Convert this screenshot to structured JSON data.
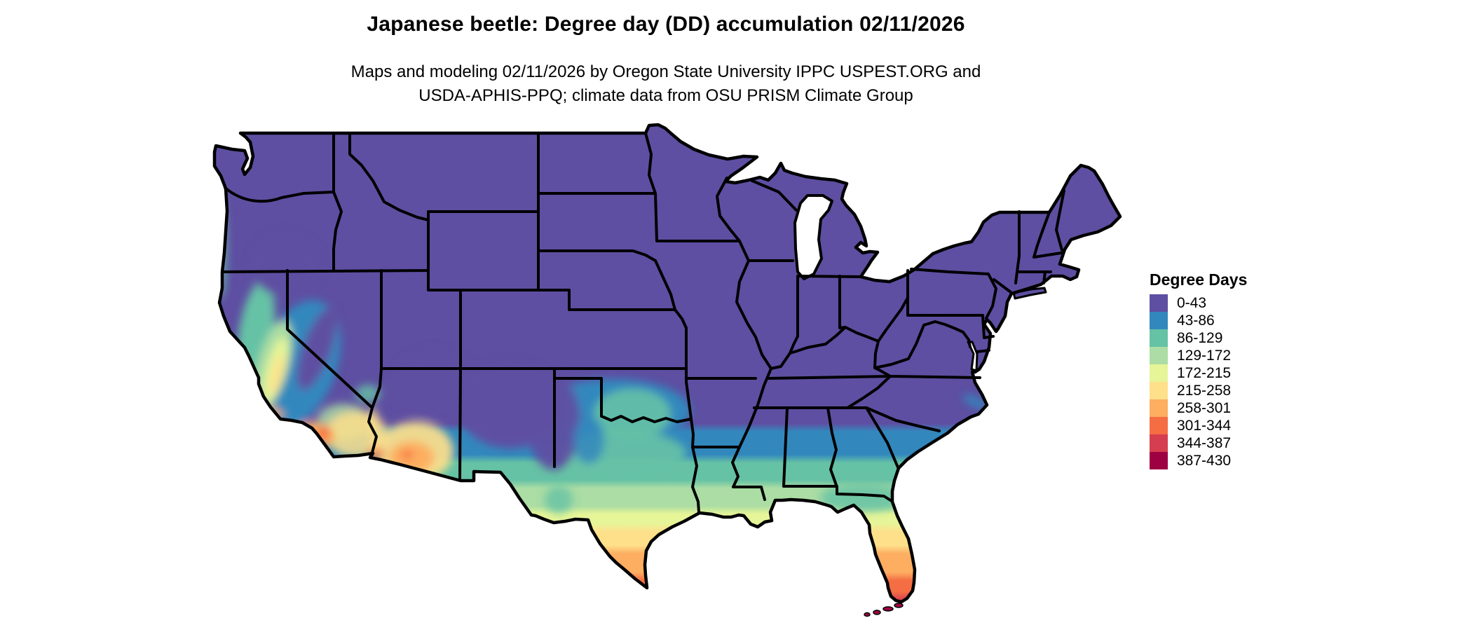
{
  "header": {
    "title": "Japanese beetle: Degree day (DD) accumulation 02/11/2026",
    "subtitle_line1": "Maps and modeling 02/11/2026 by Oregon State University IPPC USPEST.ORG and",
    "subtitle_line2": "USDA-APHIS-PPQ; climate data from OSU PRISM Climate Group"
  },
  "legend": {
    "title": "Degree Days",
    "items": [
      {
        "label": "0-43",
        "color": "#5e4fa2"
      },
      {
        "label": "43-86",
        "color": "#3288bd"
      },
      {
        "label": "86-129",
        "color": "#66c2a5"
      },
      {
        "label": "129-172",
        "color": "#abdda4"
      },
      {
        "label": "172-215",
        "color": "#e6f598"
      },
      {
        "label": "215-258",
        "color": "#fee08b"
      },
      {
        "label": "258-301",
        "color": "#fdae61"
      },
      {
        "label": "301-344",
        "color": "#f46d43"
      },
      {
        "label": "344-387",
        "color": "#d53e4f"
      },
      {
        "label": "387-430",
        "color": "#9e0142"
      }
    ]
  },
  "map": {
    "region": "Contiguous United States",
    "background_color": "#ffffff",
    "state_border_color": "#000000",
    "dominant_class_color": "#5e4fa2"
  }
}
